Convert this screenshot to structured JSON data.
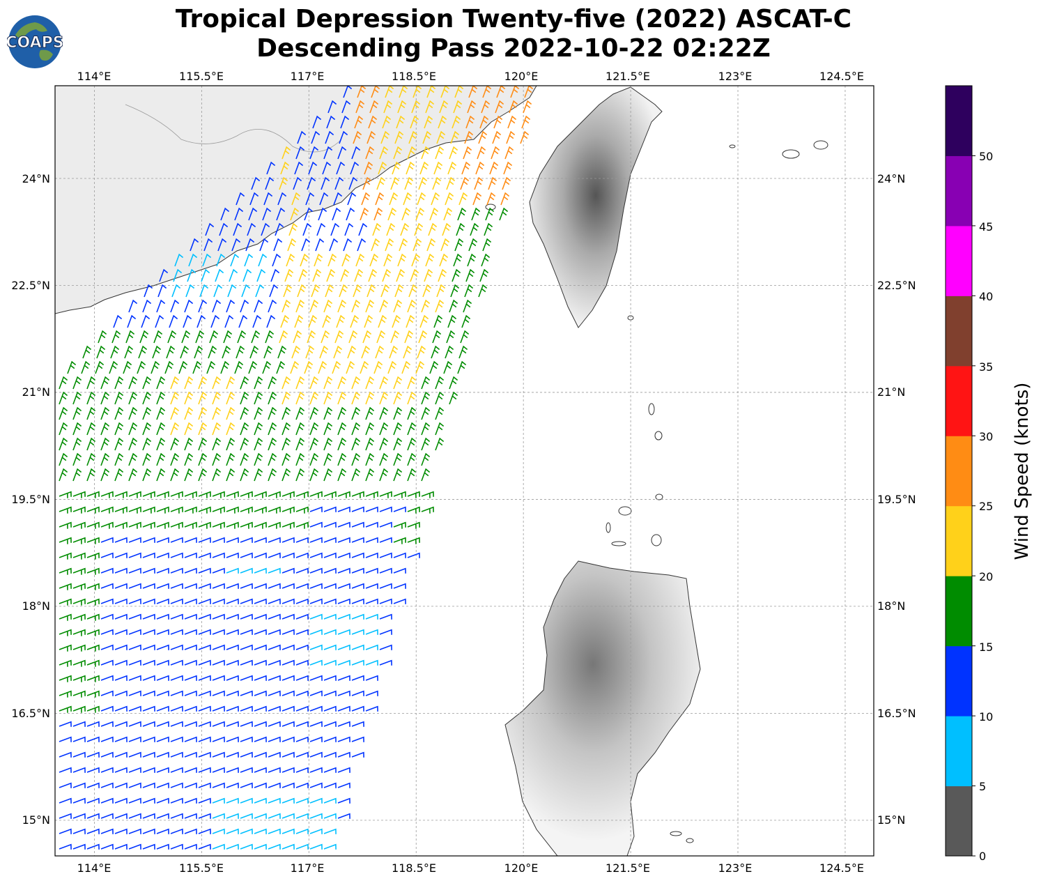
{
  "title_line1": "Tropical Depression Twenty-five (2022) ASCAT-C",
  "title_line2": "Descending Pass 2022-10-22 02:22Z",
  "logo_text": "COAPS",
  "map": {
    "lon_ticks": [
      "114°E",
      "115.5°E",
      "117°E",
      "118.5°E",
      "120°E",
      "121.5°E",
      "123°E",
      "124.5°E"
    ],
    "lat_ticks": [
      "24°N",
      "22.5°N",
      "21°N",
      "19.5°N",
      "18°N",
      "16.5°N",
      "15°N"
    ],
    "extent": {
      "lon_min": 113.45,
      "lon_max": 124.9,
      "lat_min": 14.5,
      "lat_max": 25.3
    },
    "grid": true
  },
  "colorbar": {
    "label": "Wind Speed (knots)",
    "tick_labels": [
      "0",
      "5",
      "10",
      "15",
      "20",
      "25",
      "30",
      "35",
      "40",
      "45",
      "50"
    ],
    "bins": [
      {
        "min": 0,
        "max": 5,
        "color": "#595959"
      },
      {
        "min": 5,
        "max": 10,
        "color": "#00bfff"
      },
      {
        "min": 10,
        "max": 15,
        "color": "#0033ff"
      },
      {
        "min": 15,
        "max": 20,
        "color": "#008c00"
      },
      {
        "min": 20,
        "max": 25,
        "color": "#ffd11a"
      },
      {
        "min": 25,
        "max": 30,
        "color": "#ff8c14"
      },
      {
        "min": 30,
        "max": 35,
        "color": "#ff1414"
      },
      {
        "min": 35,
        "max": 40,
        "color": "#80402e"
      },
      {
        "min": 40,
        "max": 45,
        "color": "#ff00ff"
      },
      {
        "min": 45,
        "max": 50,
        "color": "#8800b3"
      },
      {
        "min": 50,
        "max": 55,
        "color": "#2e005e"
      }
    ]
  },
  "chart_data": {
    "type": "wind-barbs",
    "instrument": "ASCAT-C",
    "pass": "Descending",
    "time": "2022-10-22 02:22Z",
    "units": "knots",
    "swath_regions": [
      {
        "area": "Luzon Strait approach / north swath edge near Taiwan",
        "dominant_speed_knots": "25-30",
        "color": "#ff8c14"
      },
      {
        "area": "Central swath 19.5N-24N",
        "dominant_speed_knots": "20-25",
        "color": "#ffd11a"
      },
      {
        "area": "Eastern swath edge 18.5N-23N",
        "dominant_speed_knots": "15-20",
        "color": "#008c00"
      },
      {
        "area": "Western swath 17N-21N",
        "dominant_speed_knots": "15-20",
        "color": "#008c00"
      },
      {
        "area": "Southern swath 14.5N-18N",
        "dominant_speed_knots": "10-15",
        "color": "#0033ff"
      },
      {
        "area": "Scattered patches near Hong Kong and 17N 117.5E",
        "dominant_speed_knots": "5-10",
        "color": "#00bfff"
      }
    ]
  }
}
